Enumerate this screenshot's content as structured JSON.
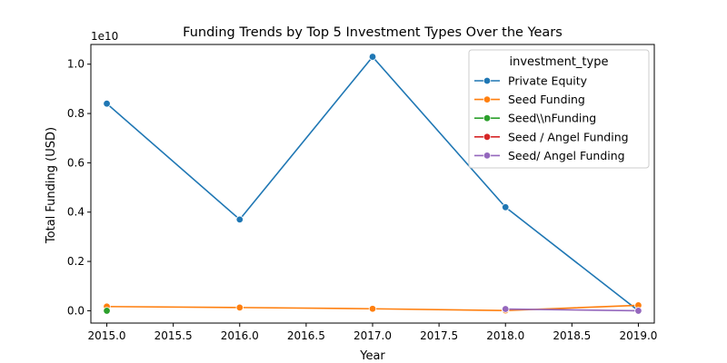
{
  "chart_data": {
    "type": "line",
    "title": "Funding Trends by Top 5 Investment Types Over the Years",
    "xlabel": "Year",
    "ylabel": "Total Funding (USD)",
    "y_offset_label": "1e10",
    "xlim": [
      2014.88,
      2019.12
    ],
    "ylim": [
      -0.05,
      1.08
    ],
    "x_ticks": [
      2015.0,
      2015.5,
      2016.0,
      2016.5,
      2017.0,
      2017.5,
      2018.0,
      2018.5,
      2019.0
    ],
    "x_tick_labels": [
      "2015.0",
      "2015.5",
      "2016.0",
      "2016.5",
      "2017.0",
      "2017.5",
      "2018.0",
      "2018.5",
      "2019.0"
    ],
    "y_ticks": [
      0.0,
      0.2,
      0.4,
      0.6,
      0.8,
      1.0
    ],
    "y_tick_labels": [
      "0.0",
      "0.2",
      "0.4",
      "0.6",
      "0.8",
      "1.0"
    ],
    "grid": false,
    "legend": {
      "title": "investment_type",
      "placement": "top-right"
    },
    "series": [
      {
        "name": "Private Equity",
        "color": "#1f77b4",
        "points": [
          [
            2015,
            0.84
          ],
          [
            2016,
            0.37
          ],
          [
            2017,
            1.03
          ],
          [
            2018,
            0.42
          ],
          [
            2019,
            0.0
          ]
        ]
      },
      {
        "name": "Seed Funding",
        "color": "#ff7f0e",
        "points": [
          [
            2015,
            0.017
          ],
          [
            2016,
            0.013
          ],
          [
            2017,
            0.008
          ],
          [
            2018,
            0.001
          ],
          [
            2019,
            0.022
          ]
        ]
      },
      {
        "name": "Seed\\\\nFunding",
        "color": "#2ca02c",
        "points": [
          [
            2015,
            0.0
          ]
        ]
      },
      {
        "name": "Seed / Angel Funding",
        "color": "#d62728",
        "points": [
          [
            2019,
            0.0
          ]
        ]
      },
      {
        "name": "Seed/ Angel Funding",
        "color": "#9467bd",
        "points": [
          [
            2018,
            0.007
          ],
          [
            2019,
            0.0
          ]
        ]
      }
    ]
  }
}
